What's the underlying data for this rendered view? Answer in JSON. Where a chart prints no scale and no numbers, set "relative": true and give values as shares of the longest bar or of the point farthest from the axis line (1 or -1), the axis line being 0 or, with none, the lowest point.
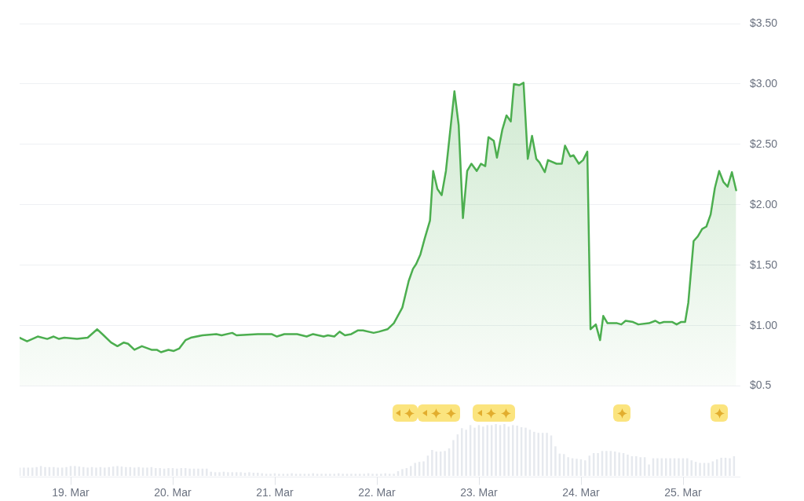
{
  "chart_data": [
    {
      "type": "area",
      "tick_labels": "y",
      "grid": "y",
      "x": [
        "--03-18T12:00",
        "--03-18T13:45",
        "--03-18T16:15",
        "--03-18T18:30",
        "--03-18T20:00",
        "--03-18T21:15",
        "--03-18T22:30",
        "--03-19T01:30",
        "--03-19T04:00",
        "--03-19T06:15",
        "--03-19T07:45",
        "--03-19T09:30",
        "--03-19T11:00",
        "--03-19T12:30",
        "--03-19T13:30",
        "--03-19T15:00",
        "--03-19T16:45",
        "--03-19T19:00",
        "--03-19T20:15",
        "--03-19T21:15",
        "--03-19T23:00",
        "--03-20T00:15",
        "--03-20T01:30",
        "--03-20T03:00",
        "--03-20T04:15",
        "--03-20T07:00",
        "--03-20T10:15",
        "--03-20T11:30",
        "--03-20T14:00",
        "--03-20T15:00",
        "--03-20T20:00",
        "--03-20T23:15",
        "--03-21T00:30",
        "--03-21T02:15",
        "--03-21T05:15",
        "--03-21T07:30",
        "--03-21T09:00",
        "--03-21T11:30",
        "--03-21T12:30",
        "--03-21T14:00",
        "--03-21T15:15",
        "--03-21T16:30",
        "--03-21T18:00",
        "--03-21T19:30",
        "--03-21T20:45",
        "--03-21T23:15",
        "--03-22T00:30",
        "--03-22T02:30",
        "--03-22T04:00",
        "--03-22T06:00",
        "--03-22T07:30",
        "--03-22T08:30",
        "--03-22T09:15",
        "--03-22T10:15",
        "--03-22T11:15",
        "--03-22T12:30",
        "--03-22T13:15",
        "--03-22T14:15",
        "--03-22T15:15",
        "--03-22T16:15",
        "--03-22T18:15",
        "--03-22T19:15",
        "--03-22T20:15",
        "--03-22T21:15",
        "--03-22T22:15",
        "--03-22T23:30",
        "--03-23T00:30",
        "--03-23T01:30",
        "--03-23T02:15",
        "--03-23T03:30",
        "--03-23T04:15",
        "--03-23T05:30",
        "--03-23T06:30",
        "--03-23T07:30",
        "--03-23T08:15",
        "--03-23T09:30",
        "--03-23T10:30",
        "--03-23T11:30",
        "--03-23T12:30",
        "--03-23T13:30",
        "--03-23T14:15",
        "--03-23T15:30",
        "--03-23T16:15",
        "--03-23T18:15",
        "--03-23T19:30",
        "--03-23T20:15",
        "--03-23T21:30",
        "--03-23T22:15",
        "--03-23T23:30",
        "--03-24T00:30",
        "--03-24T01:30",
        "--03-24T02:15",
        "--03-24T03:30",
        "--03-24T04:30",
        "--03-24T05:15",
        "--03-24T06:15",
        "--03-24T08:30",
        "--03-24T09:30",
        "--03-24T10:30",
        "--03-24T12:15",
        "--03-24T13:30",
        "--03-24T16:00",
        "--03-24T17:30",
        "--03-24T18:30",
        "--03-24T19:30",
        "--03-24T21:30",
        "--03-24T22:30",
        "--03-24T23:30",
        "--03-25T00:30",
        "--03-25T01:15",
        "--03-25T02:30",
        "--03-25T03:30",
        "--03-25T04:30",
        "--03-25T05:30",
        "--03-25T06:30",
        "--03-25T07:30",
        "--03-25T08:30",
        "--03-25T09:30",
        "--03-25T10:30",
        "--03-25T11:30",
        "--03-25T12:30"
      ],
      "series": [
        {
          "color": "#4cae4f",
          "values": [
            0.9,
            0.87,
            0.91,
            0.89,
            0.91,
            0.89,
            0.9,
            0.89,
            0.9,
            0.97,
            0.92,
            0.86,
            0.83,
            0.86,
            0.85,
            0.8,
            0.83,
            0.8,
            0.8,
            0.78,
            0.8,
            0.79,
            0.81,
            0.88,
            0.9,
            0.92,
            0.93,
            0.92,
            0.94,
            0.92,
            0.93,
            0.93,
            0.91,
            0.93,
            0.93,
            0.91,
            0.93,
            0.91,
            0.92,
            0.91,
            0.95,
            0.92,
            0.93,
            0.96,
            0.96,
            0.94,
            0.95,
            0.97,
            1.02,
            1.15,
            1.37,
            1.47,
            1.51,
            1.59,
            1.72,
            1.87,
            2.28,
            2.13,
            2.08,
            2.28,
            2.94,
            2.66,
            1.89,
            2.28,
            2.34,
            2.28,
            2.34,
            2.32,
            2.56,
            2.53,
            2.39,
            2.62,
            2.74,
            2.69,
            3.0,
            2.99,
            3.01,
            2.38,
            2.57,
            2.38,
            2.35,
            2.27,
            2.37,
            2.34,
            2.34,
            2.49,
            2.4,
            2.41,
            2.34,
            2.37,
            2.44,
            0.97,
            1.01,
            0.88,
            1.08,
            1.02,
            1.02,
            1.01,
            1.04,
            1.03,
            1.01,
            1.02,
            1.04,
            1.02,
            1.03,
            1.03,
            1.01,
            1.03,
            1.03,
            1.19,
            1.7,
            1.74,
            1.8,
            1.82,
            1.92,
            2.14,
            2.28,
            2.19,
            2.15,
            2.27,
            2.12
          ]
        }
      ],
      "xlim": [
        "--03-18T12:00",
        "--03-25T13:30"
      ],
      "ylim": [
        0.5,
        3.5
      ],
      "yticks": [
        {
          "value": 0.5,
          "label": "$0.5"
        },
        {
          "value": 1,
          "label": "$1.00"
        },
        {
          "value": 1.5,
          "label": "$1.50"
        },
        {
          "value": 2,
          "label": "$2.00"
        },
        {
          "value": 2.5,
          "label": "$2.50"
        },
        {
          "value": 3,
          "label": "$3.00"
        },
        {
          "value": 3.5,
          "label": "$3.50"
        }
      ]
    },
    {
      "type": "bar",
      "relative": true,
      "tick_labels": "x",
      "color": "#e6e9ee",
      "x": [
        "--03-18T12:00",
        "--03-18T13:00",
        "--03-18T14:00",
        "--03-18T15:00",
        "--03-18T16:00",
        "--03-18T17:00",
        "--03-18T18:00",
        "--03-18T19:00",
        "--03-18T20:00",
        "--03-18T21:00",
        "--03-18T22:00",
        "--03-18T23:00",
        "--03-19T00:00",
        "--03-19T01:00",
        "--03-19T02:00",
        "--03-19T03:00",
        "--03-19T04:00",
        "--03-19T05:00",
        "--03-19T06:00",
        "--03-19T07:00",
        "--03-19T08:00",
        "--03-19T09:00",
        "--03-19T10:00",
        "--03-19T11:00",
        "--03-19T12:00",
        "--03-19T13:00",
        "--03-19T14:00",
        "--03-19T15:00",
        "--03-19T16:00",
        "--03-19T17:00",
        "--03-19T18:00",
        "--03-19T19:00",
        "--03-19T20:00",
        "--03-19T21:00",
        "--03-19T22:00",
        "--03-19T23:00",
        "--03-20T00:00",
        "--03-20T01:00",
        "--03-20T02:00",
        "--03-20T03:00",
        "--03-20T04:00",
        "--03-20T05:00",
        "--03-20T06:00",
        "--03-20T07:00",
        "--03-20T08:00",
        "--03-20T09:00",
        "--03-20T10:00",
        "--03-20T11:00",
        "--03-20T12:00",
        "--03-20T13:00",
        "--03-20T14:00",
        "--03-20T15:00",
        "--03-20T16:00",
        "--03-20T17:00",
        "--03-20T18:00",
        "--03-20T19:00",
        "--03-20T20:00",
        "--03-20T21:00",
        "--03-20T22:00",
        "--03-20T23:00",
        "--03-21T00:00",
        "--03-21T01:00",
        "--03-21T02:00",
        "--03-21T03:00",
        "--03-21T04:00",
        "--03-21T05:00",
        "--03-21T06:00",
        "--03-21T07:00",
        "--03-21T08:00",
        "--03-21T09:00",
        "--03-21T10:00",
        "--03-21T11:00",
        "--03-21T12:00",
        "--03-21T13:00",
        "--03-21T14:00",
        "--03-21T15:00",
        "--03-21T16:00",
        "--03-21T17:00",
        "--03-21T18:00",
        "--03-21T19:00",
        "--03-21T20:00",
        "--03-21T21:00",
        "--03-21T22:00",
        "--03-21T23:00",
        "--03-22T00:00",
        "--03-22T01:00",
        "--03-22T02:00",
        "--03-22T03:00",
        "--03-22T04:00",
        "--03-22T05:00",
        "--03-22T06:00",
        "--03-22T07:00",
        "--03-22T08:00",
        "--03-22T09:00",
        "--03-22T10:00",
        "--03-22T11:00",
        "--03-22T12:00",
        "--03-22T13:00",
        "--03-22T14:00",
        "--03-22T15:00",
        "--03-22T16:00",
        "--03-22T17:00",
        "--03-22T18:00",
        "--03-22T19:00",
        "--03-22T20:00",
        "--03-22T21:00",
        "--03-22T22:00",
        "--03-22T23:00",
        "--03-23T00:00",
        "--03-23T01:00",
        "--03-23T02:00",
        "--03-23T03:00",
        "--03-23T04:00",
        "--03-23T05:00",
        "--03-23T06:00",
        "--03-23T07:00",
        "--03-23T08:00",
        "--03-23T09:00",
        "--03-23T10:00",
        "--03-23T11:00",
        "--03-23T12:00",
        "--03-23T13:00",
        "--03-23T14:00",
        "--03-23T15:00",
        "--03-23T16:00",
        "--03-23T17:00",
        "--03-23T18:00",
        "--03-23T19:00",
        "--03-23T20:00",
        "--03-23T21:00",
        "--03-23T22:00",
        "--03-23T23:00",
        "--03-24T00:00",
        "--03-24T01:00",
        "--03-24T02:00",
        "--03-24T03:00",
        "--03-24T04:00",
        "--03-24T05:00",
        "--03-24T06:00",
        "--03-24T07:00",
        "--03-24T08:00",
        "--03-24T09:00",
        "--03-24T10:00",
        "--03-24T11:00",
        "--03-24T12:00",
        "--03-24T13:00",
        "--03-24T14:00",
        "--03-24T15:00",
        "--03-24T16:00",
        "--03-24T17:00",
        "--03-24T18:00",
        "--03-24T19:00",
        "--03-24T20:00",
        "--03-24T21:00",
        "--03-24T22:00",
        "--03-24T23:00",
        "--03-25T00:00",
        "--03-25T01:00",
        "--03-25T02:00",
        "--03-25T03:00",
        "--03-25T04:00",
        "--03-25T05:00",
        "--03-25T06:00",
        "--03-25T07:00",
        "--03-25T08:00",
        "--03-25T09:00",
        "--03-25T10:00",
        "--03-25T11:00",
        "--03-25T12:00"
      ],
      "values": [
        0.16,
        0.16,
        0.16,
        0.16,
        0.17,
        0.19,
        0.17,
        0.17,
        0.17,
        0.16,
        0.16,
        0.17,
        0.19,
        0.19,
        0.18,
        0.17,
        0.16,
        0.17,
        0.16,
        0.17,
        0.16,
        0.17,
        0.18,
        0.19,
        0.18,
        0.17,
        0.17,
        0.16,
        0.17,
        0.16,
        0.16,
        0.17,
        0.15,
        0.15,
        0.14,
        0.15,
        0.15,
        0.14,
        0.15,
        0.15,
        0.14,
        0.14,
        0.14,
        0.14,
        0.14,
        0.08,
        0.07,
        0.07,
        0.08,
        0.07,
        0.07,
        0.07,
        0.07,
        0.06,
        0.07,
        0.06,
        0.06,
        0.05,
        0.04,
        0.04,
        0.05,
        0.04,
        0.04,
        0.04,
        0.05,
        0.04,
        0.04,
        0.04,
        0.04,
        0.05,
        0.04,
        0.04,
        0.04,
        0.04,
        0.04,
        0.05,
        0.04,
        0.04,
        0.04,
        0.04,
        0.04,
        0.04,
        0.05,
        0.04,
        0.04,
        0.04,
        0.05,
        0.04,
        0.04,
        0.09,
        0.13,
        0.15,
        0.19,
        0.25,
        0.27,
        0.28,
        0.39,
        0.5,
        0.47,
        0.47,
        0.48,
        0.53,
        0.69,
        0.8,
        0.92,
        0.89,
        0.98,
        0.93,
        0.98,
        0.95,
        0.98,
        0.98,
        1,
        0.98,
        1,
        0.95,
        0.98,
        0.97,
        0.94,
        0.93,
        0.89,
        0.85,
        0.83,
        0.83,
        0.83,
        0.78,
        0.57,
        0.43,
        0.42,
        0.36,
        0.34,
        0.33,
        0.32,
        0.3,
        0.39,
        0.44,
        0.44,
        0.48,
        0.48,
        0.48,
        0.47,
        0.45,
        0.44,
        0.41,
        0.38,
        0.38,
        0.36,
        0.36,
        0.22,
        0.34,
        0.34,
        0.34,
        0.34,
        0.34,
        0.34,
        0.34,
        0.34,
        0.34,
        0.3,
        0.27,
        0.25,
        0.25,
        0.25,
        0.28,
        0.32,
        0.35,
        0.35,
        0.34,
        0.38
      ],
      "xlim": [
        "--03-18T12:00",
        "--03-25T13:30"
      ],
      "xticks": [
        {
          "value": "--03-19",
          "label": "19. Mar"
        },
        {
          "value": "--03-20",
          "label": "20. Mar"
        },
        {
          "value": "--03-21",
          "label": "21. Mar"
        },
        {
          "value": "--03-22",
          "label": "22. Mar"
        },
        {
          "value": "--03-23",
          "label": "23. Mar"
        },
        {
          "value": "--03-24",
          "label": "24. Mar"
        },
        {
          "value": "--03-25",
          "label": "25. Mar"
        }
      ]
    }
  ]
}
